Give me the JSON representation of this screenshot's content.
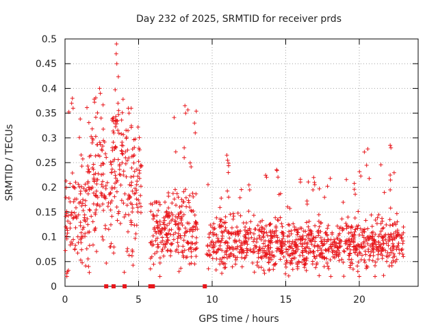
{
  "chart_data": {
    "type": "scatter",
    "title": "Day 232 of 2025, SRMTID for receiver prds",
    "xlabel": "GPS time / hours",
    "ylabel": "SRMTID / TECUs",
    "xlim": [
      0,
      24
    ],
    "ylim": [
      0,
      0.5
    ],
    "x_ticks": [
      0,
      5,
      10,
      15,
      20
    ],
    "x_tick_labels": [
      "0",
      "5",
      "10",
      "15",
      "20"
    ],
    "y_ticks": [
      0,
      0.05,
      0.1,
      0.15,
      0.2,
      0.25,
      0.3,
      0.35,
      0.4,
      0.45,
      0.5
    ],
    "y_tick_labels": [
      "0",
      "0.05",
      "0.1",
      "0.15",
      "0.2",
      "0.25",
      "0.3",
      "0.35",
      "0.4",
      "0.45",
      "0.5"
    ],
    "grid": true,
    "marker_color": "#e8161b",
    "series": [
      {
        "name": "SRMTID",
        "marker": "plus",
        "segments": [
          {
            "start": 0.0,
            "end": 1.6,
            "base": 0.14,
            "spread": 0.05,
            "max": 0.38,
            "n": 110
          },
          {
            "start": 1.6,
            "end": 2.7,
            "base": 0.2,
            "spread": 0.06,
            "max": 0.4,
            "n": 90
          },
          {
            "start": 2.7,
            "end": 3.2,
            "base": 0.17,
            "spread": 0.05,
            "max": 0.32,
            "n": 30
          },
          {
            "start": 3.2,
            "end": 4.0,
            "base": 0.26,
            "spread": 0.08,
            "max": 0.49,
            "n": 70
          },
          {
            "start": 4.0,
            "end": 5.2,
            "base": 0.2,
            "spread": 0.07,
            "max": 0.36,
            "n": 90
          },
          {
            "start": 5.8,
            "end": 7.0,
            "base": 0.11,
            "spread": 0.035,
            "max": 0.17,
            "n": 90
          },
          {
            "start": 7.0,
            "end": 9.0,
            "base": 0.12,
            "spread": 0.04,
            "max": 0.36,
            "n": 150
          },
          {
            "start": 9.6,
            "end": 15.0,
            "base": 0.085,
            "spread": 0.025,
            "max": 0.26,
            "n": 380
          },
          {
            "start": 15.0,
            "end": 20.0,
            "base": 0.085,
            "spread": 0.025,
            "max": 0.22,
            "n": 360
          },
          {
            "start": 20.0,
            "end": 23.0,
            "base": 0.085,
            "spread": 0.025,
            "max": 0.28,
            "n": 210
          }
        ],
        "outliers": [
          {
            "x": 0.5,
            "y": 0.38
          },
          {
            "x": 0.45,
            "y": 0.37
          },
          {
            "x": 0.55,
            "y": 0.36
          },
          {
            "x": 2.35,
            "y": 0.4
          },
          {
            "x": 2.4,
            "y": 0.39
          },
          {
            "x": 2.45,
            "y": 0.34
          },
          {
            "x": 3.5,
            "y": 0.49
          },
          {
            "x": 3.48,
            "y": 0.47
          },
          {
            "x": 3.52,
            "y": 0.45
          },
          {
            "x": 3.6,
            "y": 0.37
          },
          {
            "x": 4.3,
            "y": 0.36
          },
          {
            "x": 4.35,
            "y": 0.35
          },
          {
            "x": 8.15,
            "y": 0.365
          },
          {
            "x": 8.2,
            "y": 0.35
          },
          {
            "x": 8.8,
            "y": 0.33
          },
          {
            "x": 8.85,
            "y": 0.31
          },
          {
            "x": 8.1,
            "y": 0.28
          },
          {
            "x": 8.1,
            "y": 0.26
          },
          {
            "x": 1.6,
            "y": 0.04
          },
          {
            "x": 1.65,
            "y": 0.028
          },
          {
            "x": 7.75,
            "y": 0.03
          },
          {
            "x": 11.0,
            "y": 0.265
          },
          {
            "x": 11.05,
            "y": 0.255
          },
          {
            "x": 11.1,
            "y": 0.23
          },
          {
            "x": 12.5,
            "y": 0.205
          },
          {
            "x": 12.55,
            "y": 0.195
          },
          {
            "x": 16.9,
            "y": 0.22
          },
          {
            "x": 16.95,
            "y": 0.21
          },
          {
            "x": 16.85,
            "y": 0.195
          },
          {
            "x": 22.1,
            "y": 0.285
          },
          {
            "x": 22.15,
            "y": 0.28
          },
          {
            "x": 22.1,
            "y": 0.225
          },
          {
            "x": 22.12,
            "y": 0.215
          },
          {
            "x": 22.1,
            "y": 0.195
          },
          {
            "x": 20.0,
            "y": 0.02
          },
          {
            "x": 19.9,
            "y": 0.03
          }
        ]
      }
    ],
    "zero_markers": [
      2.8,
      3.3,
      4.05,
      5.8,
      5.9,
      5.97,
      9.5
    ]
  }
}
